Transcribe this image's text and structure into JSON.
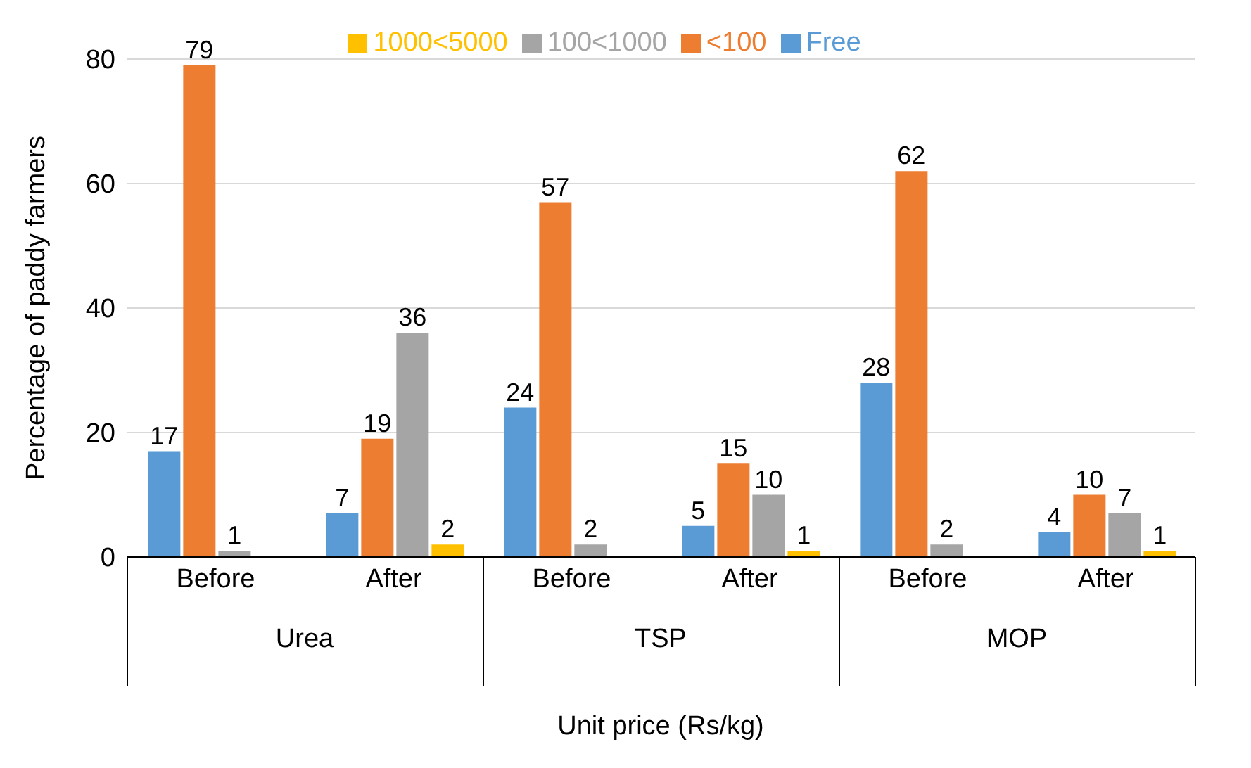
{
  "chart_data": {
    "type": "bar",
    "xlabel": "Unit price (Rs/kg)",
    "ylabel": "Percentage of paddy farmers",
    "categories": [
      "Before",
      "After",
      "Before",
      "After",
      "Before",
      "After"
    ],
    "series": [
      {
        "name": "Free",
        "color": "#5b9bd5",
        "values": [
          17,
          7,
          24,
          5,
          28,
          4
        ]
      },
      {
        "name": "<100",
        "color": "#ed7d31",
        "values": [
          79,
          19,
          57,
          15,
          62,
          10
        ]
      },
      {
        "name": "100<1000",
        "color": "#a5a5a5",
        "values": [
          1,
          36,
          2,
          10,
          2,
          7
        ]
      },
      {
        "name": "1000<5000",
        "color": "#ffc000",
        "values": [
          null,
          2,
          null,
          1,
          null,
          1
        ]
      }
    ],
    "annotations": [
      "Urea",
      "TSP",
      "MOP"
    ],
    "ylim": [
      0,
      80
    ],
    "yticks": [
      0,
      20,
      40,
      60,
      80
    ],
    "grid": "y",
    "legend": "top",
    "data_labels": true
  }
}
